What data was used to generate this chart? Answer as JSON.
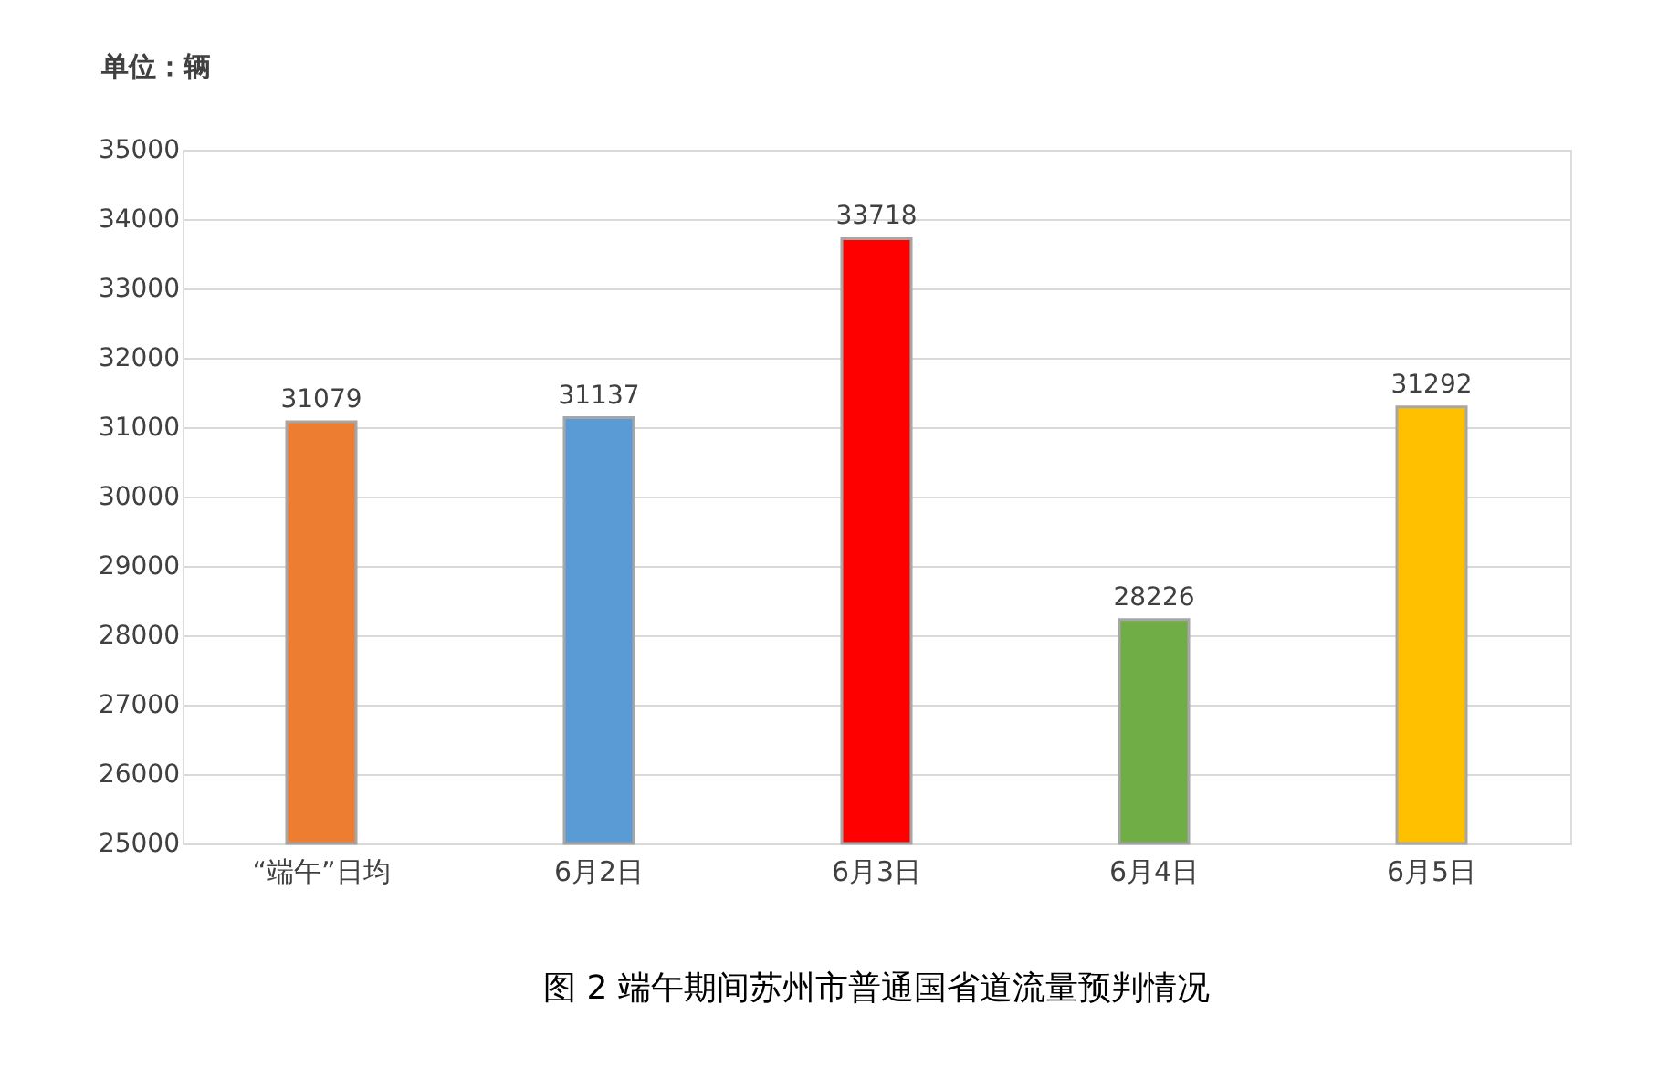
{
  "chart_data": {
    "type": "bar",
    "ylabel": "单位：辆",
    "categories": [
      "“端午”日均",
      "6月2日",
      "6月3日",
      "6月4日",
      "6月5日"
    ],
    "values": [
      31079,
      31137,
      33718,
      28226,
      31292
    ],
    "colors": [
      "#ed7d31",
      "#5b9bd5",
      "#ff0000",
      "#70ad47",
      "#ffc000"
    ],
    "ylim": [
      25000,
      35000
    ],
    "yticks": [
      25000,
      26000,
      27000,
      28000,
      29000,
      30000,
      31000,
      32000,
      33000,
      34000,
      35000
    ],
    "grid": "y",
    "legend": false,
    "data_labels": true,
    "annotations": [
      "图 2  端午期间苏州市普通国省道流量预判情况"
    ]
  }
}
